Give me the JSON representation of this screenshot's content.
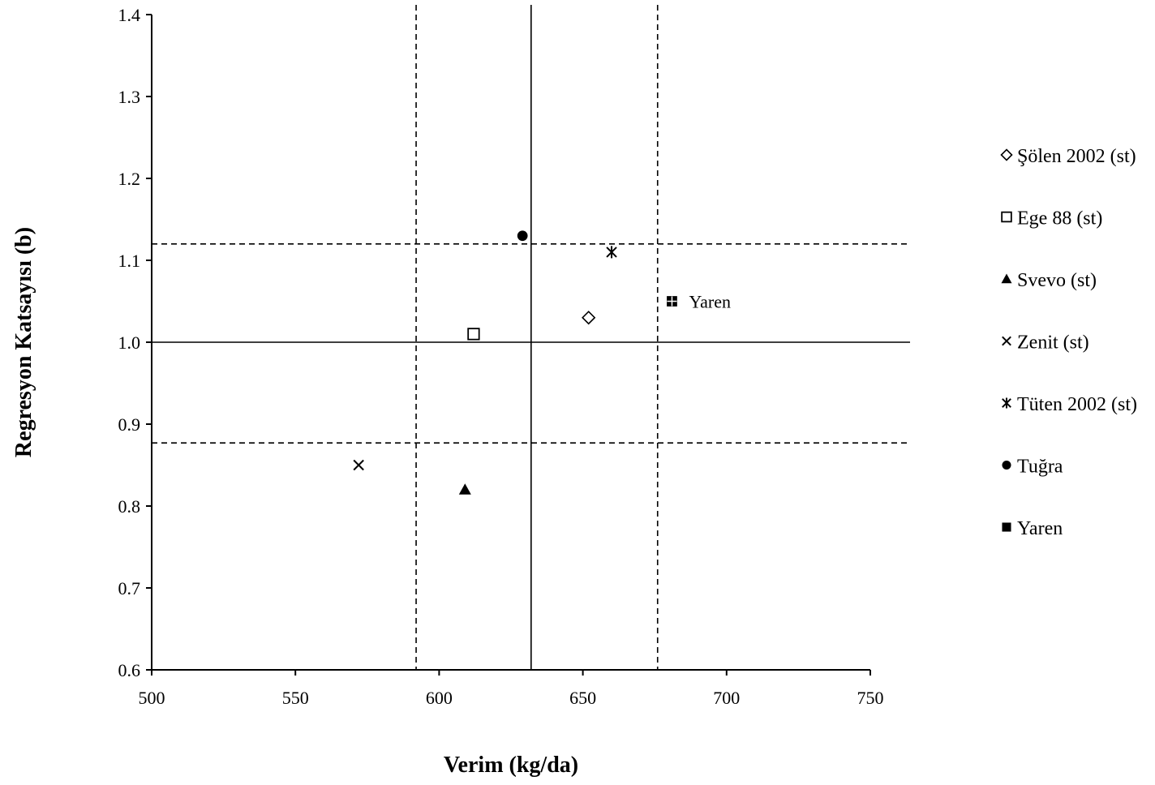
{
  "chart_data": {
    "type": "scatter",
    "xlabel": "Verim (kg/da)",
    "ylabel": "Regresyon Katsayısı (b)",
    "xlim": [
      500,
      750
    ],
    "ylim": [
      0.6,
      1.4
    ],
    "x_ticks": [
      "500",
      "550",
      "600",
      "650",
      "700",
      "750"
    ],
    "y_ticks": [
      "0.6",
      "0.7",
      "0.8",
      "0.9",
      "1.0",
      "1.1",
      "1.2",
      "1.3",
      "1.4"
    ],
    "grid": false,
    "legend_position": "right",
    "series": [
      {
        "name": "Şölen 2002 (st)",
        "marker": "diamond-open",
        "x": 652,
        "y": 1.03
      },
      {
        "name": "Ege 88 (st)",
        "marker": "square-open",
        "x": 612,
        "y": 1.01
      },
      {
        "name": "Svevo (st)",
        "marker": "triangle-filled",
        "x": 609,
        "y": 0.82
      },
      {
        "name": "Zenit (st)",
        "marker": "x-cross",
        "x": 572,
        "y": 0.85
      },
      {
        "name": "Tüten 2002 (st)",
        "marker": "star-asterisk",
        "x": 660,
        "y": 1.11
      },
      {
        "name": "Tuğra",
        "marker": "circle-filled",
        "x": 629,
        "y": 1.13
      },
      {
        "name": "Yaren",
        "marker": "square-filled",
        "x": 681,
        "y": 1.05
      }
    ],
    "reference_lines": [
      {
        "orientation": "vertical",
        "style": "solid",
        "value": 632
      },
      {
        "orientation": "vertical",
        "style": "dashed",
        "value": 592
      },
      {
        "orientation": "vertical",
        "style": "dashed",
        "value": 676
      },
      {
        "orientation": "horizontal",
        "style": "solid",
        "value": 1.0
      },
      {
        "orientation": "horizontal",
        "style": "dashed",
        "value": 1.12
      },
      {
        "orientation": "horizontal",
        "style": "dashed",
        "value": 0.877
      }
    ],
    "annotations": [
      {
        "text": "Yaren",
        "x": 681,
        "y": 1.05
      }
    ]
  }
}
